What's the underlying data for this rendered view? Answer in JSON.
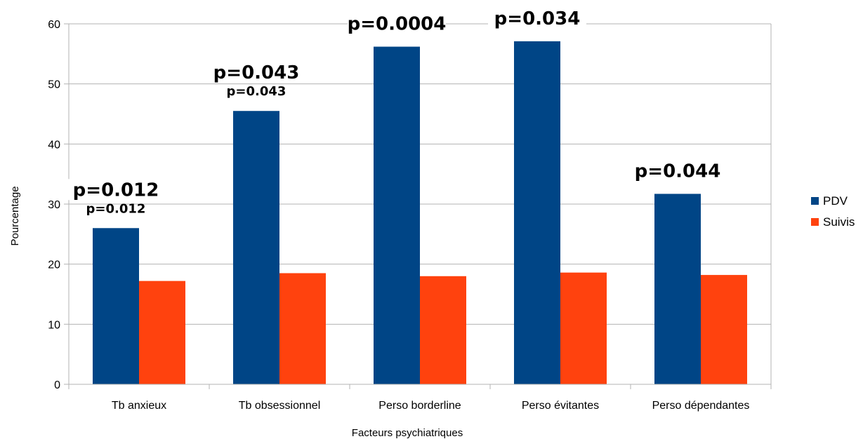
{
  "chart_data": {
    "type": "bar",
    "categories": [
      "Tb anxieux",
      "Tb obsessionnel",
      "Perso borderline",
      "Perso évitantes",
      "Perso dépendantes"
    ],
    "series": [
      {
        "name": "PDV",
        "values": [
          26,
          45.5,
          56.2,
          57.1,
          31.7
        ],
        "color": "#004586"
      },
      {
        "name": "Suivis",
        "values": [
          17.2,
          18.5,
          18.0,
          18.6,
          18.2
        ],
        "color": "#ff420e"
      }
    ],
    "annotations": [
      {
        "category_index": 0,
        "text": "p=0.012",
        "secondary": "p=0.012"
      },
      {
        "category_index": 1,
        "text": "p=0.043",
        "secondary": "p=0.043"
      },
      {
        "category_index": 2,
        "text": "p=0.0004",
        "secondary": ""
      },
      {
        "category_index": 3,
        "text": "p=0.034",
        "secondary": ""
      },
      {
        "category_index": 4,
        "text": "p=0.044",
        "secondary": ""
      }
    ],
    "xlabel": "Facteurs psychiatriques",
    "ylabel": "Pourcentage",
    "ylim": [
      0,
      60
    ],
    "yticks": [
      0,
      10,
      20,
      30,
      40,
      50,
      60
    ],
    "grid": true,
    "legend_position": "right"
  }
}
